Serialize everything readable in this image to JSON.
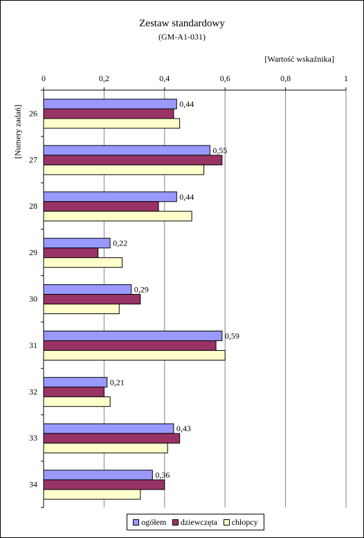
{
  "chart_data": {
    "type": "bar",
    "orientation": "horizontal",
    "title": "Zestaw standardowy",
    "subtitle": "(GM-A1-031)",
    "xlabel": "[Wartość wskaźnika]",
    "ylabel": "[Numery zadań]",
    "xlim": [
      0,
      1
    ],
    "xticks": [
      0,
      0.2,
      0.4,
      0.6,
      0.8,
      1
    ],
    "xtick_labels": [
      "0",
      "0,2",
      "0,4",
      "0,6",
      "0,8",
      "1"
    ],
    "x_axis_position": "top",
    "grid": true,
    "legend_position": "bottom",
    "categories": [
      "26",
      "27",
      "28",
      "29",
      "30",
      "31",
      "32",
      "33",
      "34"
    ],
    "series": [
      {
        "name": "ogółem",
        "color": "#9999ff",
        "values": [
          0.44,
          0.55,
          0.44,
          0.22,
          0.29,
          0.59,
          0.21,
          0.43,
          0.36
        ]
      },
      {
        "name": "dziewczęta",
        "color": "#993366",
        "values": [
          0.43,
          0.59,
          0.38,
          0.18,
          0.32,
          0.57,
          0.2,
          0.45,
          0.4
        ]
      },
      {
        "name": "chłopcy",
        "color": "#ffffcc",
        "values": [
          0.45,
          0.53,
          0.49,
          0.26,
          0.25,
          0.6,
          0.22,
          0.41,
          0.32
        ]
      }
    ],
    "data_labels": [
      "0,44",
      "0,55",
      "0,44",
      "0,22",
      "0,29",
      "0,59",
      "0,21",
      "0,43",
      "0,36"
    ]
  }
}
